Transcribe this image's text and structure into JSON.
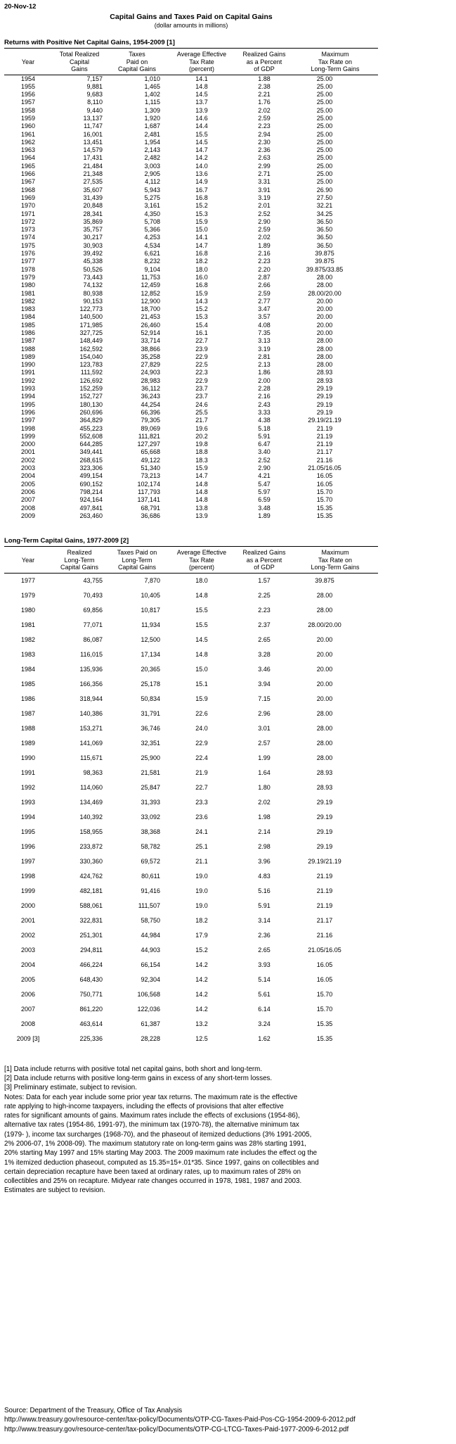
{
  "page": {
    "date": "20-Nov-12",
    "title": "Capital Gains and Taxes Paid on Capital Gains",
    "subtitle": "(dollar amounts in millions)"
  },
  "table1": {
    "section_title": "Returns with Positive Net Capital Gains, 1954-2009 [1]",
    "columns": [
      "Year",
      "Total Realized\nCapital\nGains",
      "Taxes\nPaid on\nCapital Gains",
      "Average Effective\nTax Rate\n(percent)",
      "Realized Gains\nas a Percent\nof GDP",
      "Maximum\nTax Rate on\nLong-Term Gains"
    ],
    "rows": [
      [
        "1954",
        "7,157",
        "1,010",
        "14.1",
        "1.88",
        "25.00"
      ],
      [
        "1955",
        "9,881",
        "1,465",
        "14.8",
        "2.38",
        "25.00"
      ],
      [
        "1956",
        "9,683",
        "1,402",
        "14.5",
        "2.21",
        "25.00"
      ],
      [
        "1957",
        "8,110",
        "1,115",
        "13.7",
        "1.76",
        "25.00"
      ],
      [
        "1958",
        "9,440",
        "1,309",
        "13.9",
        "2.02",
        "25.00"
      ],
      [
        "1959",
        "13,137",
        "1,920",
        "14.6",
        "2.59",
        "25.00"
      ],
      [
        "1960",
        "11,747",
        "1,687",
        "14.4",
        "2.23",
        "25.00"
      ],
      [
        "1961",
        "16,001",
        "2,481",
        "15.5",
        "2.94",
        "25.00"
      ],
      [
        "1962",
        "13,451",
        "1,954",
        "14.5",
        "2.30",
        "25.00"
      ],
      [
        "1963",
        "14,579",
        "2,143",
        "14.7",
        "2.36",
        "25.00"
      ],
      [
        "1964",
        "17,431",
        "2,482",
        "14.2",
        "2.63",
        "25.00"
      ],
      [
        "1965",
        "21,484",
        "3,003",
        "14.0",
        "2.99",
        "25.00"
      ],
      [
        "1966",
        "21,348",
        "2,905",
        "13.6",
        "2.71",
        "25.00"
      ],
      [
        "1967",
        "27,535",
        "4,112",
        "14.9",
        "3.31",
        "25.00"
      ],
      [
        "1968",
        "35,607",
        "5,943",
        "16.7",
        "3.91",
        "26.90"
      ],
      [
        "1969",
        "31,439",
        "5,275",
        "16.8",
        "3.19",
        "27.50"
      ],
      [
        "1970",
        "20,848",
        "3,161",
        "15.2",
        "2.01",
        "32.21"
      ],
      [
        "1971",
        "28,341",
        "4,350",
        "15.3",
        "2.52",
        "34.25"
      ],
      [
        "1972",
        "35,869",
        "5,708",
        "15.9",
        "2.90",
        "36.50"
      ],
      [
        "1973",
        "35,757",
        "5,366",
        "15.0",
        "2.59",
        "36.50"
      ],
      [
        "1974",
        "30,217",
        "4,253",
        "14.1",
        "2.02",
        "36.50"
      ],
      [
        "1975",
        "30,903",
        "4,534",
        "14.7",
        "1.89",
        "36.50"
      ],
      [
        "1976",
        "39,492",
        "6,621",
        "16.8",
        "2.16",
        "39.875"
      ],
      [
        "1977",
        "45,338",
        "8,232",
        "18.2",
        "2.23",
        "39.875"
      ],
      [
        "1978",
        "50,526",
        "9,104",
        "18.0",
        "2.20",
        "39.875/33.85"
      ],
      [
        "1979",
        "73,443",
        "11,753",
        "16.0",
        "2.87",
        "28.00"
      ],
      [
        "1980",
        "74,132",
        "12,459",
        "16.8",
        "2.66",
        "28.00"
      ],
      [
        "1981",
        "80,938",
        "12,852",
        "15.9",
        "2.59",
        "28.00/20.00"
      ],
      [
        "1982",
        "90,153",
        "12,900",
        "14.3",
        "2.77",
        "20.00"
      ],
      [
        "1983",
        "122,773",
        "18,700",
        "15.2",
        "3.47",
        "20.00"
      ],
      [
        "1984",
        "140,500",
        "21,453",
        "15.3",
        "3.57",
        "20.00"
      ],
      [
        "1985",
        "171,985",
        "26,460",
        "15.4",
        "4.08",
        "20.00"
      ],
      [
        "1986",
        "327,725",
        "52,914",
        "16.1",
        "7.35",
        "20.00"
      ],
      [
        "1987",
        "148,449",
        "33,714",
        "22.7",
        "3.13",
        "28.00"
      ],
      [
        "1988",
        "162,592",
        "38,866",
        "23.9",
        "3.19",
        "28.00"
      ],
      [
        "1989",
        "154,040",
        "35,258",
        "22.9",
        "2.81",
        "28.00"
      ],
      [
        "1990",
        "123,783",
        "27,829",
        "22.5",
        "2.13",
        "28.00"
      ],
      [
        "1991",
        "111,592",
        "24,903",
        "22.3",
        "1.86",
        "28.93"
      ],
      [
        "1992",
        "126,692",
        "28,983",
        "22.9",
        "2.00",
        "28.93"
      ],
      [
        "1993",
        "152,259",
        "36,112",
        "23.7",
        "2.28",
        "29.19"
      ],
      [
        "1994",
        "152,727",
        "36,243",
        "23.7",
        "2.16",
        "29.19"
      ],
      [
        "1995",
        "180,130",
        "44,254",
        "24.6",
        "2.43",
        "29.19"
      ],
      [
        "1996",
        "260,696",
        "66,396",
        "25.5",
        "3.33",
        "29.19"
      ],
      [
        "1997",
        "364,829",
        "79,305",
        "21.7",
        "4.38",
        "29.19/21.19"
      ],
      [
        "1998",
        "455,223",
        "89,069",
        "19.6",
        "5.18",
        "21.19"
      ],
      [
        "1999",
        "552,608",
        "111,821",
        "20.2",
        "5.91",
        "21.19"
      ],
      [
        "2000",
        "644,285",
        "127,297",
        "19.8",
        "6.47",
        "21.19"
      ],
      [
        "2001",
        "349,441",
        "65,668",
        "18.8",
        "3.40",
        "21.17"
      ],
      [
        "2002",
        "268,615",
        "49,122",
        "18.3",
        "2.52",
        "21.16"
      ],
      [
        "2003",
        "323,306",
        "51,340",
        "15.9",
        "2.90",
        "21.05/16.05"
      ],
      [
        "2004",
        "499,154",
        "73,213",
        "14.7",
        "4.21",
        "16.05"
      ],
      [
        "2005",
        "690,152",
        "102,174",
        "14.8",
        "5.47",
        "16.05"
      ],
      [
        "2006",
        "798,214",
        "117,793",
        "14.8",
        "5.97",
        "15.70"
      ],
      [
        "2007",
        "924,164",
        "137,141",
        "14.8",
        "6.59",
        "15.70"
      ],
      [
        "2008",
        "497,841",
        "68,791",
        "13.8",
        "3.48",
        "15.35"
      ],
      [
        "2009",
        "263,460",
        "36,686",
        "13.9",
        "1.89",
        "15.35"
      ]
    ]
  },
  "table2": {
    "section_title": "Long-Term Capital Gains, 1977-2009 [2]",
    "columns": [
      "Year",
      "Realized\nLong-Term\nCapital Gains",
      "Taxes Paid on\nLong-Term\nCapital Gains",
      "Average Effective\nTax Rate\n(percent)",
      "Realized Gains\nas a Percent\nof GDP",
      "Maximum\nTax Rate on\nLong-Term Gains"
    ],
    "rows": [
      [
        "1977",
        "43,755",
        "7,870",
        "18.0",
        "1.57",
        "39.875"
      ],
      [
        "1979",
        "70,493",
        "10,405",
        "14.8",
        "2.25",
        "28.00"
      ],
      [
        "1980",
        "69,856",
        "10,817",
        "15.5",
        "2.23",
        "28.00"
      ],
      [
        "1981",
        "77,071",
        "11,934",
        "15.5",
        "2.37",
        "28.00/20.00"
      ],
      [
        "1982",
        "86,087",
        "12,500",
        "14.5",
        "2.65",
        "20.00"
      ],
      [
        "1983",
        "116,015",
        "17,134",
        "14.8",
        "3.28",
        "20.00"
      ],
      [
        "1984",
        "135,936",
        "20,365",
        "15.0",
        "3.46",
        "20.00"
      ],
      [
        "1985",
        "166,356",
        "25,178",
        "15.1",
        "3.94",
        "20.00"
      ],
      [
        "1986",
        "318,944",
        "50,834",
        "15.9",
        "7.15",
        "20.00"
      ],
      [
        "1987",
        "140,386",
        "31,791",
        "22.6",
        "2.96",
        "28.00"
      ],
      [
        "1988",
        "153,271",
        "36,746",
        "24.0",
        "3.01",
        "28.00"
      ],
      [
        "1989",
        "141,069",
        "32,351",
        "22.9",
        "2.57",
        "28.00"
      ],
      [
        "1990",
        "115,671",
        "25,900",
        "22.4",
        "1.99",
        "28.00"
      ],
      [
        "1991",
        "98,363",
        "21,581",
        "21.9",
        "1.64",
        "28.93"
      ],
      [
        "1992",
        "114,060",
        "25,847",
        "22.7",
        "1.80",
        "28.93"
      ],
      [
        "1993",
        "134,469",
        "31,393",
        "23.3",
        "2.02",
        "29.19"
      ],
      [
        "1994",
        "140,392",
        "33,092",
        "23.6",
        "1.98",
        "29.19"
      ],
      [
        "1995",
        "158,955",
        "38,368",
        "24.1",
        "2.14",
        "29.19"
      ],
      [
        "1996",
        "233,872",
        "58,782",
        "25.1",
        "2.98",
        "29.19"
      ],
      [
        "1997",
        "330,360",
        "69,572",
        "21.1",
        "3.96",
        "29.19/21.19"
      ],
      [
        "1998",
        "424,762",
        "80,611",
        "19.0",
        "4.83",
        "21.19"
      ],
      [
        "1999",
        "482,181",
        "91,416",
        "19.0",
        "5.16",
        "21.19"
      ],
      [
        "2000",
        "588,061",
        "111,507",
        "19.0",
        "5.91",
        "21.19"
      ],
      [
        "2001",
        "322,831",
        "58,750",
        "18.2",
        "3.14",
        "21.17"
      ],
      [
        "2002",
        "251,301",
        "44,984",
        "17.9",
        "2.36",
        "21.16"
      ],
      [
        "2003",
        "294,811",
        "44,903",
        "15.2",
        "2.65",
        "21.05/16.05"
      ],
      [
        "2004",
        "466,224",
        "66,154",
        "14.2",
        "3.93",
        "16.05"
      ],
      [
        "2005",
        "648,430",
        "92,304",
        "14.2",
        "5.14",
        "16.05"
      ],
      [
        "2006",
        "750,771",
        "106,568",
        "14.2",
        "5.61",
        "15.70"
      ],
      [
        "2007",
        "861,220",
        "122,036",
        "14.2",
        "6.14",
        "15.70"
      ],
      [
        "2008",
        "463,614",
        "61,387",
        "13.2",
        "3.24",
        "15.35"
      ],
      [
        "2009 [3]",
        "225,336",
        "28,228",
        "12.5",
        "1.62",
        "15.35"
      ]
    ]
  },
  "footnotes": "[1] Data include returns with positive total net capital gains, both short and long-term.\n[2] Data include returns with positive long-term gains in excess of any short-term losses.\n[3] Preliminary estimate, subject to revision.\nNotes: Data for each year include some prior year tax returns. The maximum rate is the effective\nrate applying to high-income taxpayers, including the effects of provisions that alter effective\nrates for significant amounts of gains. Maximum rates include the effects of exclusions (1954-86),\nalternative tax rates (1954-86, 1991-97), the minimum tax (1970-78), the alternative minimum tax\n(1979- ), income tax surcharges (1968-70), and the phaseout of itemized deductions (3% 1991-2005,\n2% 2006-07, 1% 2008-09). The maximum statutory rate on long-term gains was 28% starting 1991,\n20% starting May 1997 and 15% starting May 2003.  The 2009 maximum rate includes the effect og the\n1% itemized deduction phaseout, computed as 15.35=15+.01*35.  Since 1997, gains on collectibles and\ncertain depreciation recapture have been taxed at ordinary rates, up to maximum rates of 28% on\ncollectibles and 25% on recapture. Midyear rate changes occurred in 1978, 1981, 1987 and 2003.\nEstimates are subject to revision.",
  "source": {
    "label": "Source: Department of the Treasury, Office of Tax Analysis",
    "url1": "http://www.treasury.gov/resource-center/tax-policy/Documents/OTP-CG-Taxes-Paid-Pos-CG-1954-2009-6-2012.pdf",
    "url2": "http://www.treasury.gov/resource-center/tax-policy/Documents/OTP-CG-LTCG-Taxes-Paid-1977-2009-6-2012.pdf"
  }
}
